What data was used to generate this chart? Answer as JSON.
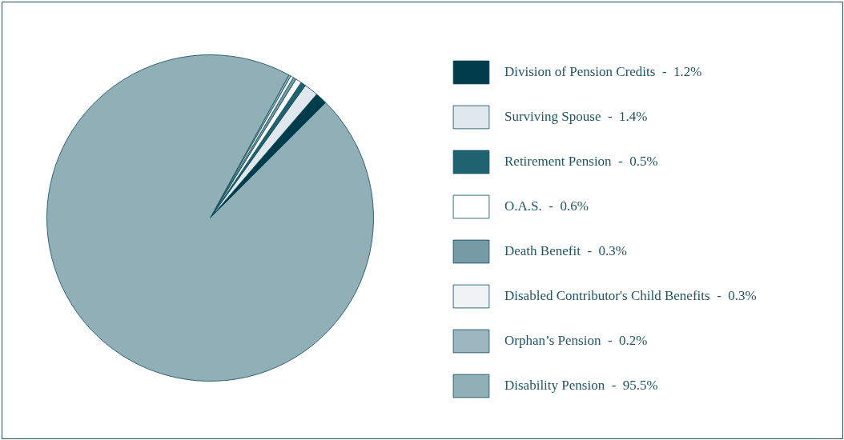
{
  "chart_data": {
    "type": "pie",
    "categories": [
      "Division of Pension Credits",
      "Surviving Spouse",
      "Retirement Pension",
      "O.A.S.",
      "Death Benefit",
      "Disabled Contributor's Child Benefits",
      "Orphan’s Pension",
      "Disability Pension"
    ],
    "values": [
      1.2,
      1.4,
      0.5,
      0.6,
      0.3,
      0.3,
      0.2,
      95.5
    ],
    "value_labels": [
      "1.2%",
      "1.4%",
      "0.5%",
      "0.6%",
      "0.3%",
      "0.3%",
      "0.2%",
      "95.5%"
    ],
    "colors": [
      "#003d4c",
      "#e0e8ee",
      "#1f6270",
      "#ffffff",
      "#769ba6",
      "#eff3f4",
      "#9db7c0",
      "#90afb7"
    ],
    "legend": "right"
  }
}
